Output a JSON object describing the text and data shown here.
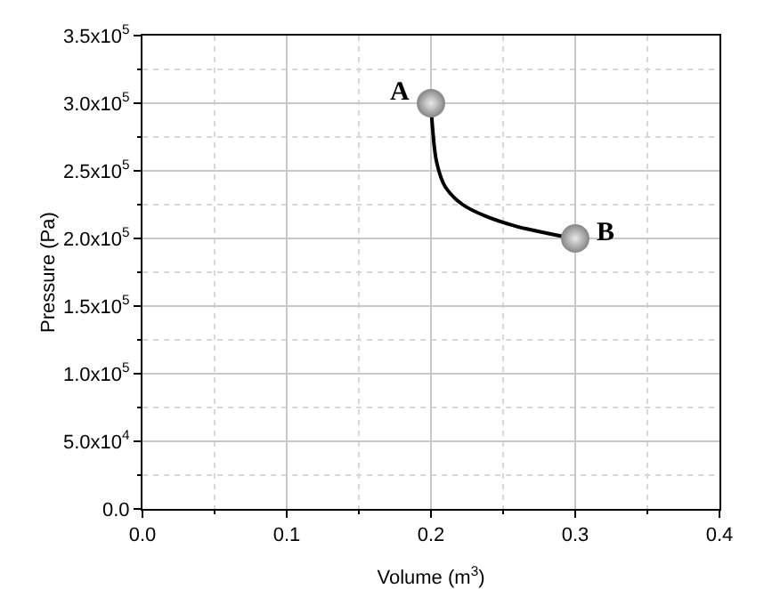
{
  "chart_data": {
    "type": "line",
    "xlabel": "Volume (m$^{3}$)",
    "ylabel": "Pressure (Pa)",
    "series": [
      {
        "color": "#000000",
        "marker": "none",
        "x": [
          0.2,
          0.201,
          0.204,
          0.21,
          0.222,
          0.239,
          0.259,
          0.28,
          0.3
        ],
        "values": [
          300000,
          283000,
          256000,
          238000,
          225000,
          216000,
          209000,
          204000,
          200000
        ]
      },
      {
        "type": "scatter",
        "color": "#8c8c8c",
        "marker": "circle",
        "x": [
          0.2,
          0.3
        ],
        "values": [
          300000,
          200000
        ]
      }
    ],
    "annotations": [
      {
        "text": "A",
        "x": 0.2,
        "y": 300000
      },
      {
        "text": "B",
        "x": 0.3,
        "y": 200000
      }
    ],
    "xlim": [
      0,
      0.4
    ],
    "xticks": [
      {
        "value": 0,
        "label": "0.0"
      },
      0.1,
      0.2,
      0.3,
      0.4
    ],
    "ylim": [
      0,
      350000
    ],
    "yticks": [
      {
        "value": 0,
        "label": "0.0"
      },
      {
        "value": 50000,
        "label": "5.0x10$^{4}$"
      },
      {
        "value": 100000,
        "label": "1.0x10$^{5}$"
      },
      {
        "value": 150000,
        "label": "1.5x10$^{5}$"
      },
      {
        "value": 200000,
        "label": "2.0x10$^{5}$"
      },
      {
        "value": 250000,
        "label": "2.5x10$^{5}$"
      },
      {
        "value": 300000,
        "label": "3.0x10$^{5}$"
      },
      {
        "value": 350000,
        "label": "3.5x10$^{5}$"
      }
    ],
    "grid": true
  }
}
